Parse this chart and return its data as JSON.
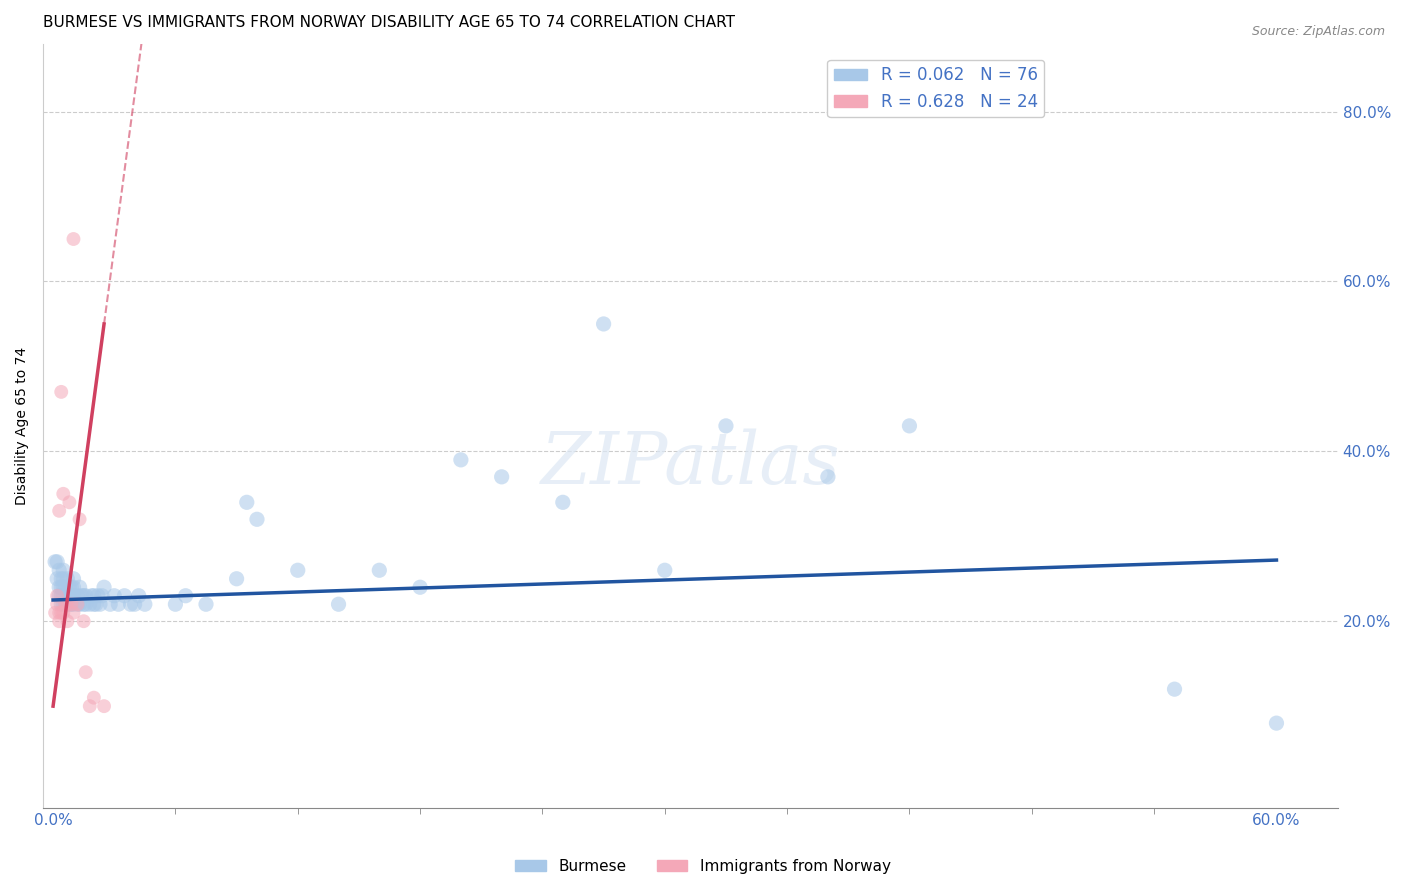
{
  "title": "BURMESE VS IMMIGRANTS FROM NORWAY DISABILITY AGE 65 TO 74 CORRELATION CHART",
  "source": "Source: ZipAtlas.com",
  "ylabel": "Disability Age 65 to 74",
  "legend_label_1": "Burmese",
  "legend_label_2": "Immigrants from Norway",
  "R1": 0.062,
  "N1": 76,
  "R2": 0.628,
  "N2": 24,
  "color_blue": "#a8c8e8",
  "color_pink": "#f4a8b8",
  "color_blue_line": "#2155a0",
  "color_pink_line": "#d04060",
  "xlim": [
    -0.005,
    0.63
  ],
  "ylim": [
    -0.02,
    0.88
  ],
  "xtick_positions": [
    0.0,
    0.6
  ],
  "xtick_labels": [
    "0.0%",
    "60.0%"
  ],
  "yticks_right": [
    0.2,
    0.4,
    0.6,
    0.8
  ],
  "blue_x": [
    0.001,
    0.002,
    0.002,
    0.003,
    0.003,
    0.003,
    0.004,
    0.004,
    0.004,
    0.004,
    0.005,
    0.005,
    0.005,
    0.005,
    0.005,
    0.006,
    0.006,
    0.007,
    0.007,
    0.007,
    0.008,
    0.008,
    0.008,
    0.009,
    0.009,
    0.009,
    0.01,
    0.01,
    0.01,
    0.01,
    0.012,
    0.012,
    0.013,
    0.013,
    0.014,
    0.015,
    0.015,
    0.016,
    0.016,
    0.018,
    0.019,
    0.02,
    0.02,
    0.021,
    0.022,
    0.023,
    0.024,
    0.025,
    0.028,
    0.03,
    0.032,
    0.035,
    0.038,
    0.04,
    0.042,
    0.045,
    0.06,
    0.065,
    0.075,
    0.09,
    0.095,
    0.1,
    0.12,
    0.14,
    0.16,
    0.18,
    0.2,
    0.22,
    0.25,
    0.27,
    0.3,
    0.33,
    0.38,
    0.42,
    0.55,
    0.6
  ],
  "blue_y": [
    0.27,
    0.25,
    0.27,
    0.23,
    0.24,
    0.26,
    0.22,
    0.23,
    0.24,
    0.25,
    0.22,
    0.23,
    0.24,
    0.25,
    0.26,
    0.22,
    0.24,
    0.22,
    0.23,
    0.25,
    0.22,
    0.23,
    0.24,
    0.22,
    0.23,
    0.24,
    0.22,
    0.23,
    0.24,
    0.25,
    0.22,
    0.23,
    0.22,
    0.24,
    0.23,
    0.22,
    0.23,
    0.22,
    0.23,
    0.22,
    0.23,
    0.22,
    0.23,
    0.22,
    0.23,
    0.22,
    0.23,
    0.24,
    0.22,
    0.23,
    0.22,
    0.23,
    0.22,
    0.22,
    0.23,
    0.22,
    0.22,
    0.23,
    0.22,
    0.25,
    0.34,
    0.32,
    0.26,
    0.22,
    0.26,
    0.24,
    0.39,
    0.37,
    0.34,
    0.55,
    0.26,
    0.43,
    0.37,
    0.43,
    0.12,
    0.08
  ],
  "pink_x": [
    0.001,
    0.002,
    0.002,
    0.003,
    0.003,
    0.003,
    0.004,
    0.004,
    0.005,
    0.005,
    0.006,
    0.007,
    0.007,
    0.008,
    0.009,
    0.01,
    0.01,
    0.012,
    0.013,
    0.015,
    0.016,
    0.018,
    0.02,
    0.025
  ],
  "pink_y": [
    0.21,
    0.22,
    0.23,
    0.2,
    0.21,
    0.33,
    0.21,
    0.47,
    0.21,
    0.35,
    0.22,
    0.2,
    0.22,
    0.34,
    0.22,
    0.21,
    0.65,
    0.22,
    0.32,
    0.2,
    0.14,
    0.1,
    0.11,
    0.1
  ],
  "marker_size_blue": 120,
  "marker_size_pink": 100,
  "alpha": 0.55,
  "background_color": "#ffffff",
  "grid_color": "#cccccc",
  "axis_color": "#4472c4",
  "title_fontsize": 11,
  "label_fontsize": 10,
  "tick_fontsize": 11,
  "watermark_text": "ZIPatlas",
  "watermark_fontsize": 52
}
